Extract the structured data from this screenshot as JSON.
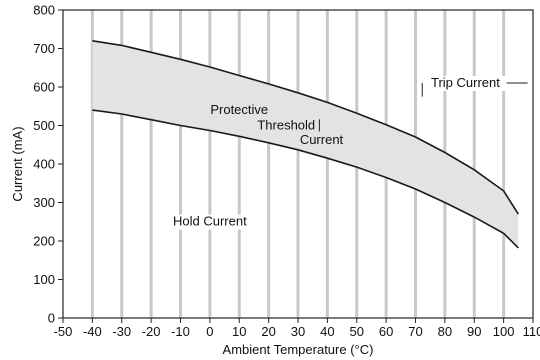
{
  "chart_data": {
    "type": "line",
    "xlabel": "Ambient Temperature (°C)",
    "ylabel": "Current (mA)",
    "xlim": [
      -50,
      110
    ],
    "ylim": [
      0,
      800
    ],
    "x_ticks": [
      "-50",
      "-40",
      "-30",
      "-20",
      "-10",
      "0",
      "10",
      "20",
      "30",
      "40",
      "50",
      "60",
      "70",
      "80",
      "90",
      "100",
      "110"
    ],
    "y_ticks": [
      "0",
      "100",
      "200",
      "300",
      "400",
      "500",
      "600",
      "700",
      "800"
    ],
    "grid": "vertical",
    "series": [
      {
        "name": "Trip Current",
        "x": [
          -40,
          -30,
          -20,
          -10,
          0,
          10,
          20,
          30,
          40,
          50,
          60,
          70,
          80,
          90,
          100,
          105
        ],
        "y": [
          720,
          708,
          690,
          672,
          652,
          630,
          608,
          585,
          560,
          532,
          502,
          470,
          430,
          385,
          330,
          270
        ]
      },
      {
        "name": "Hold Current",
        "x": [
          -40,
          -30,
          -20,
          -10,
          0,
          10,
          20,
          30,
          40,
          50,
          60,
          70,
          80,
          90,
          100,
          105
        ],
        "y": [
          540,
          530,
          515,
          500,
          487,
          472,
          455,
          437,
          415,
          392,
          365,
          335,
          300,
          262,
          220,
          182
        ]
      }
    ],
    "shaded_region": "between Trip Current and Hold Current",
    "fill_color": "#e3e3e3",
    "line_color": "#1a1a1a",
    "annotations": [
      {
        "text": "Trip Current",
        "x": 87,
        "y": 600
      },
      {
        "text": "Protective",
        "x": 10,
        "y": 530
      },
      {
        "text": "Threshold",
        "x": 26,
        "y": 490
      },
      {
        "text": "Current",
        "x": 38,
        "y": 452
      },
      {
        "text": "Hold Current",
        "x": 0,
        "y": 240
      }
    ]
  }
}
